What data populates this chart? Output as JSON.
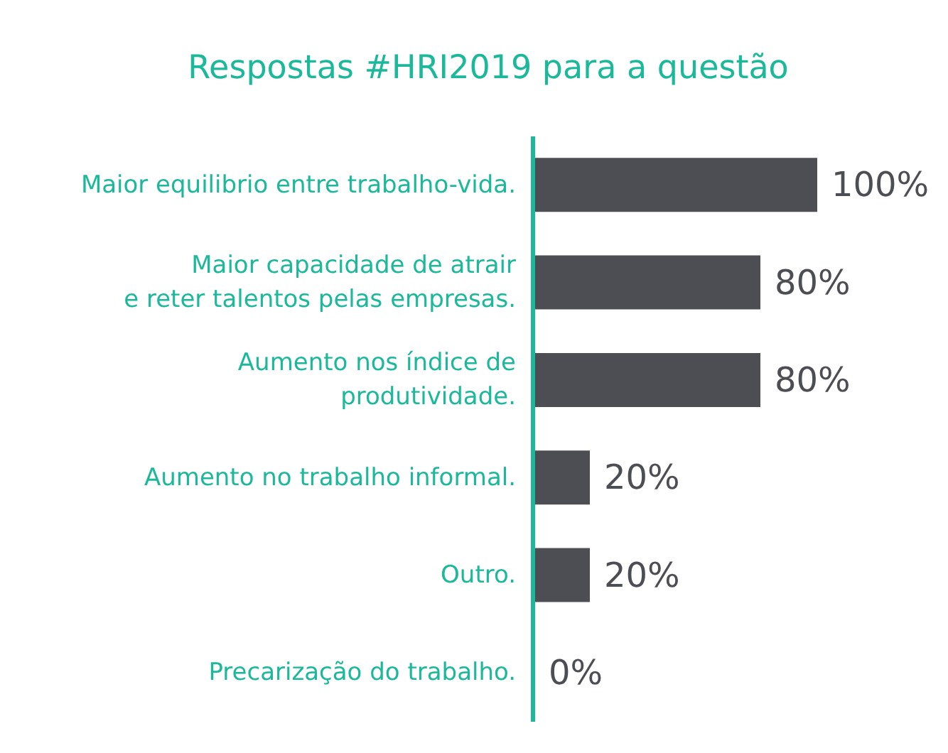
{
  "chart_data": {
    "type": "bar",
    "orientation": "horizontal",
    "title": "Respostas #HRI2019 para a questão",
    "categories": [
      "Maior equilibrio entre trabalho-vida.",
      "Maior capacidade de atrair\ne reter talentos pelas empresas.",
      "Aumento nos índice de\nprodutividade.",
      "Aumento no trabalho informal.",
      "Outro.",
      "Precarização do trabalho."
    ],
    "values": [
      100,
      80,
      80,
      20,
      20,
      0
    ],
    "value_labels": [
      "100%",
      "80%",
      "80%",
      "20%",
      "20%",
      "0%"
    ],
    "color": "#4d4e53",
    "xlim": [
      0,
      100
    ],
    "tick_labels": "y"
  }
}
